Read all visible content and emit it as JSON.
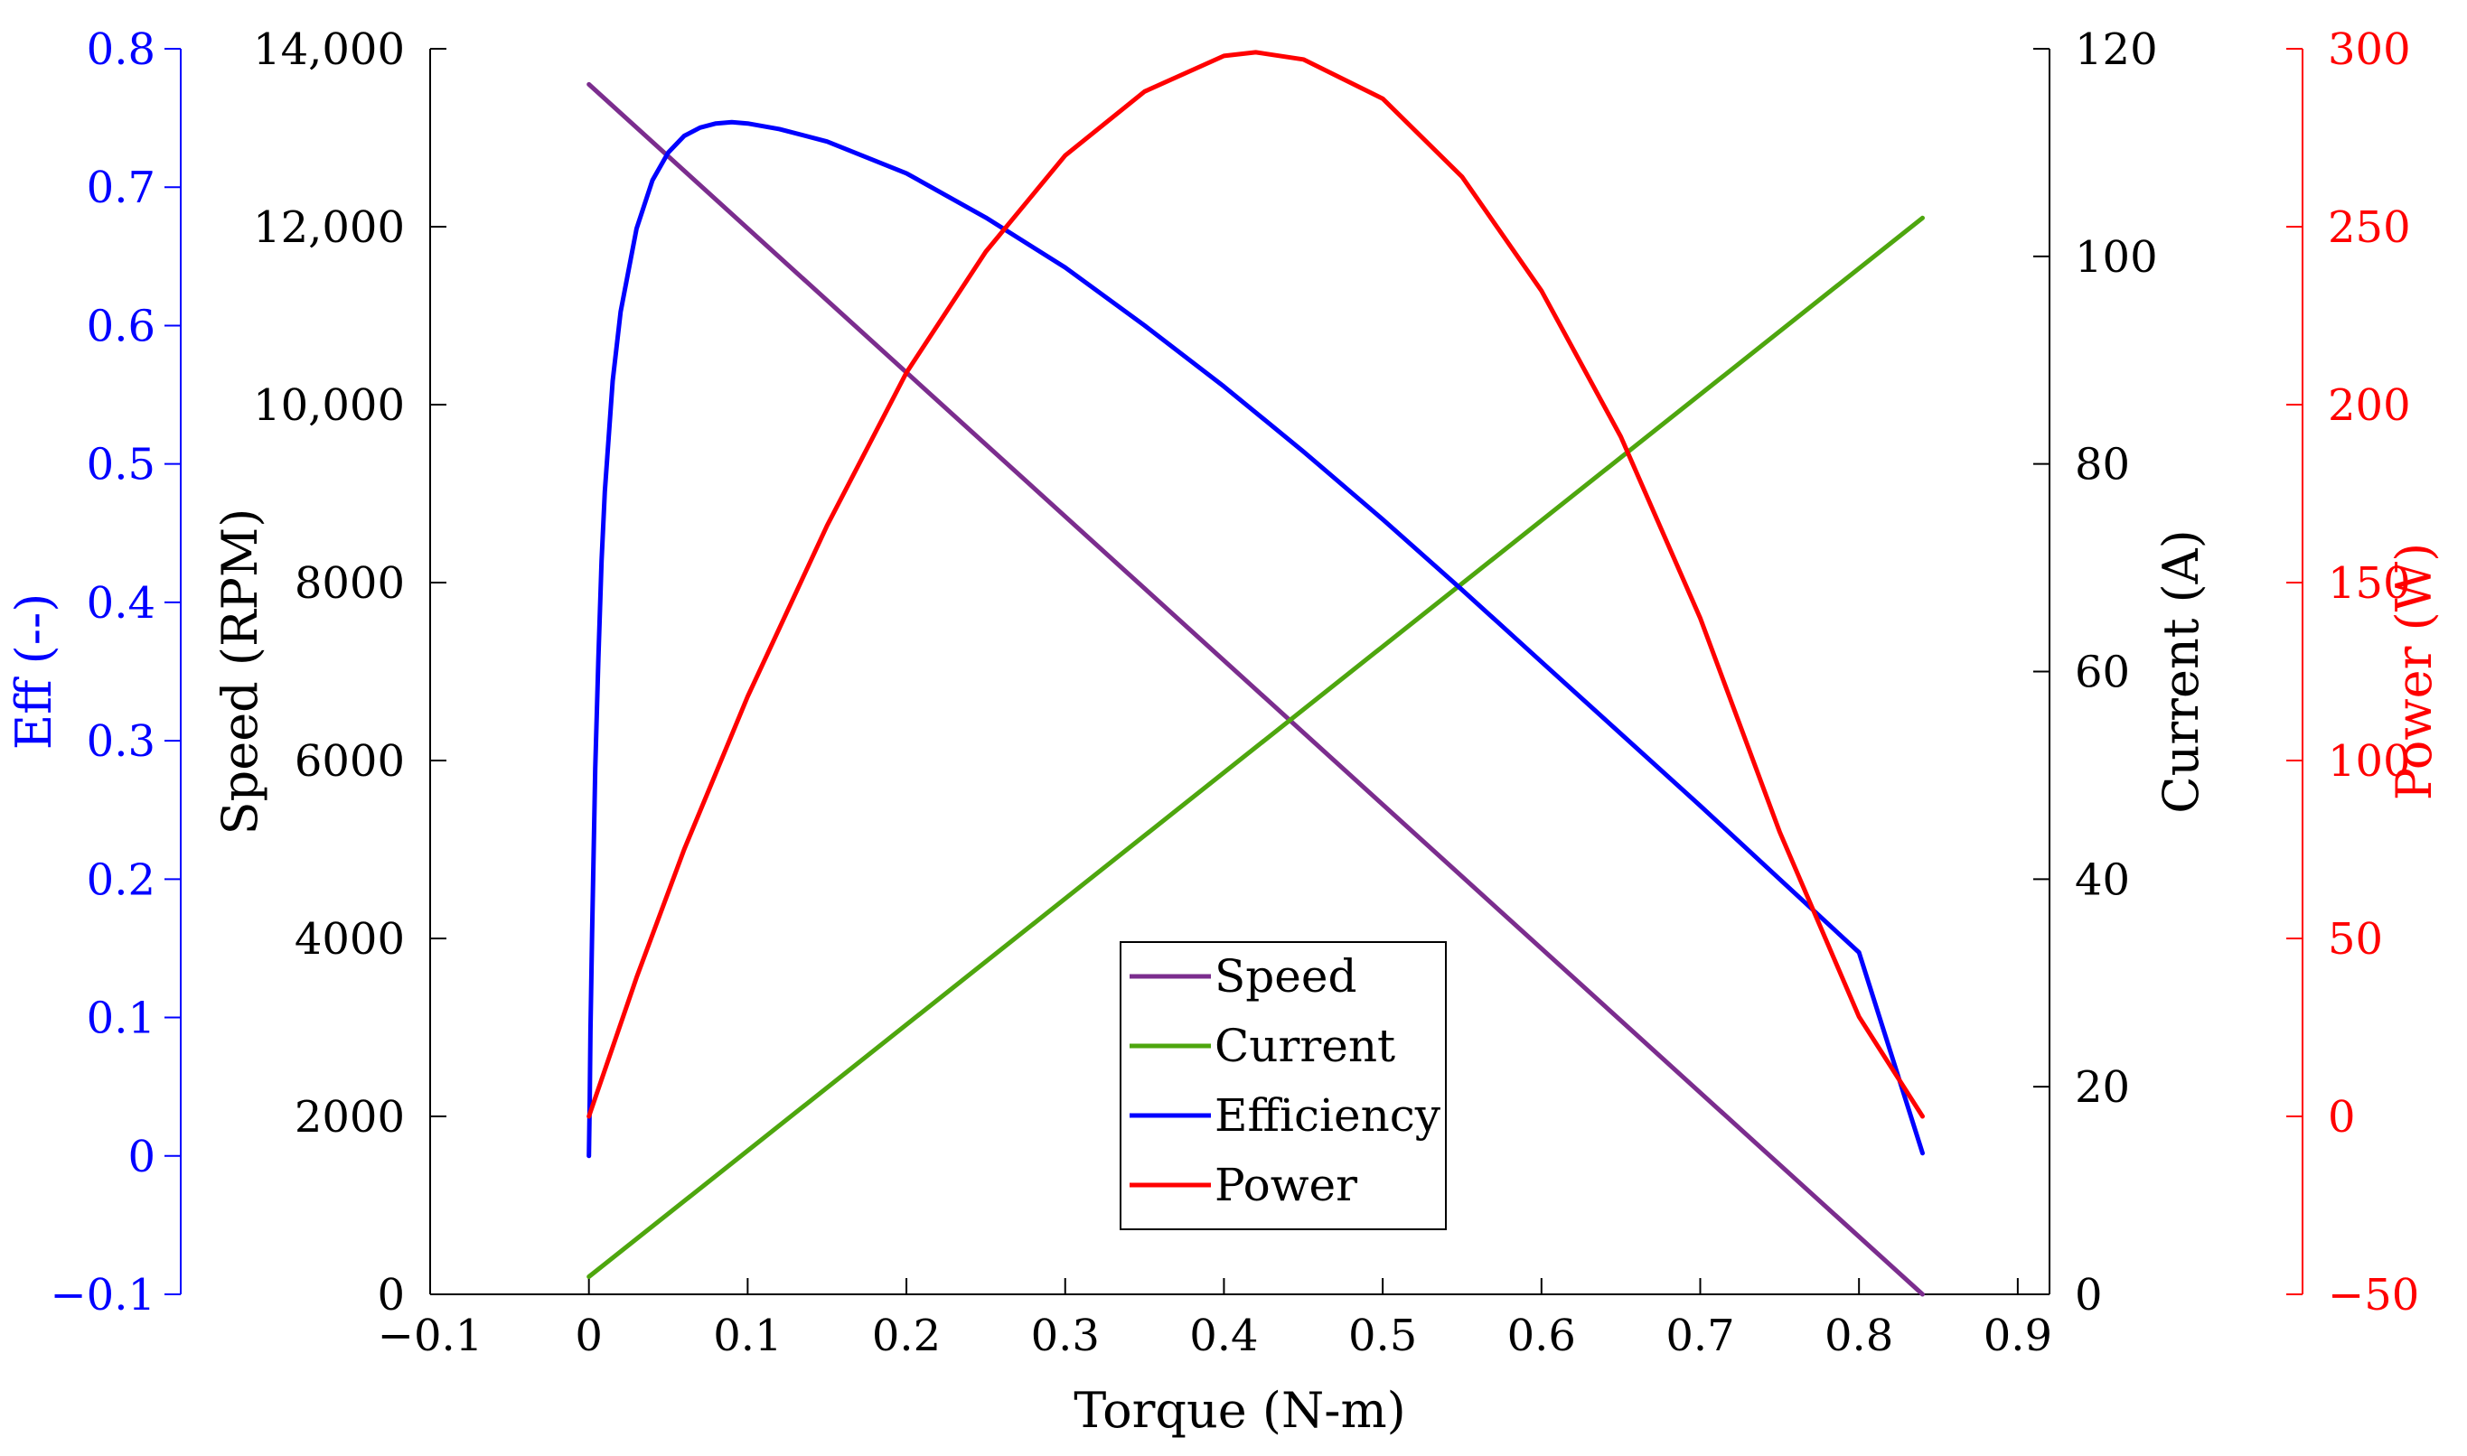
{
  "chart_data": {
    "type": "line",
    "xlabel": "Torque (N-m)",
    "xlim": [
      -0.1,
      0.92
    ],
    "xticks": [
      -0.1,
      0,
      0.1,
      0.2,
      0.3,
      0.4,
      0.5,
      0.6,
      0.7,
      0.8,
      0.9
    ],
    "xtick_labels": [
      "−0.1",
      "0",
      "0.1",
      "0.2",
      "0.3",
      "0.4",
      "0.5",
      "0.6",
      "0.7",
      "0.8",
      "0.9"
    ],
    "axes": {
      "eff": {
        "label": "Eff (--)",
        "color": "#0000ff",
        "position": "far-left",
        "ylim": [
          -0.1,
          0.8
        ],
        "ticks": [
          -0.1,
          0,
          0.1,
          0.2,
          0.3,
          0.4,
          0.5,
          0.6,
          0.7,
          0.8
        ],
        "tick_labels": [
          "−0.1",
          "0",
          "0.1",
          "0.2",
          "0.3",
          "0.4",
          "0.5",
          "0.6",
          "0.7",
          "0.8"
        ]
      },
      "speed": {
        "label": "Speed (RPM)",
        "color": "#000000",
        "position": "left",
        "ylim": [
          0,
          14000
        ],
        "ticks": [
          0,
          2000,
          4000,
          6000,
          8000,
          10000,
          12000,
          14000
        ],
        "tick_labels": [
          "0",
          "2000",
          "4000",
          "6000",
          "8000",
          "10,000",
          "12,000",
          "14,000"
        ]
      },
      "current": {
        "label": "Current (A)",
        "color": "#000000",
        "position": "right",
        "ylim": [
          0,
          120
        ],
        "ticks": [
          0,
          20,
          40,
          60,
          80,
          100,
          120
        ],
        "tick_labels": [
          "0",
          "20",
          "40",
          "60",
          "80",
          "100",
          "120"
        ]
      },
      "power": {
        "label": "Power (W)",
        "color": "#ff0000",
        "position": "far-right",
        "ylim": [
          -50,
          300
        ],
        "ticks": [
          -50,
          0,
          50,
          100,
          150,
          200,
          250,
          300
        ],
        "tick_labels": [
          "−50",
          "0",
          "50",
          "100",
          "150",
          "200",
          "250",
          "300"
        ]
      }
    },
    "series": [
      {
        "name": "Speed",
        "axis": "speed",
        "color": "#7b2d8e",
        "x": [
          0,
          0.84
        ],
        "y": [
          13600,
          0
        ]
      },
      {
        "name": "Current",
        "axis": "current",
        "color": "#4ea60e",
        "x": [
          0,
          0.84
        ],
        "y": [
          1.7,
          103.7
        ]
      },
      {
        "name": "Efficiency",
        "axis": "eff",
        "color": "#0000ff",
        "x": [
          0,
          0.0005,
          0.001,
          0.002,
          0.004,
          0.006,
          0.008,
          0.01,
          0.015,
          0.02,
          0.03,
          0.04,
          0.05,
          0.06,
          0.07,
          0.08,
          0.09,
          0.1,
          0.12,
          0.15,
          0.2,
          0.25,
          0.3,
          0.35,
          0.4,
          0.45,
          0.5,
          0.55,
          0.6,
          0.65,
          0.7,
          0.75,
          0.8,
          0.84
        ],
        "y": [
          0,
          0.04,
          0.09,
          0.16,
          0.28,
          0.36,
          0.43,
          0.48,
          0.56,
          0.61,
          0.67,
          0.705,
          0.725,
          0.737,
          0.743,
          0.746,
          0.747,
          0.746,
          0.742,
          0.733,
          0.71,
          0.678,
          0.642,
          0.6,
          0.556,
          0.509,
          0.46,
          0.409,
          0.357,
          0.305,
          0.253,
          0.2,
          0.147,
          0.002
        ]
      },
      {
        "name": "Power",
        "axis": "power",
        "color": "#ff0000",
        "x": [
          0,
          0.03,
          0.06,
          0.1,
          0.15,
          0.2,
          0.25,
          0.3,
          0.35,
          0.4,
          0.42,
          0.45,
          0.5,
          0.55,
          0.6,
          0.65,
          0.7,
          0.75,
          0.8,
          0.84
        ],
        "y": [
          0,
          39,
          75,
          118,
          166,
          209,
          243,
          270,
          288,
          298,
          299,
          297,
          286,
          264,
          232,
          191,
          140,
          80,
          28,
          0
        ]
      }
    ],
    "legend": {
      "placement": "lower-center",
      "entries": [
        {
          "label": "Speed",
          "color": "#7b2d8e"
        },
        {
          "label": "Current",
          "color": "#4ea60e"
        },
        {
          "label": "Efficiency",
          "color": "#0000ff"
        },
        {
          "label": "Power",
          "color": "#ff0000"
        }
      ]
    },
    "grid": false
  }
}
